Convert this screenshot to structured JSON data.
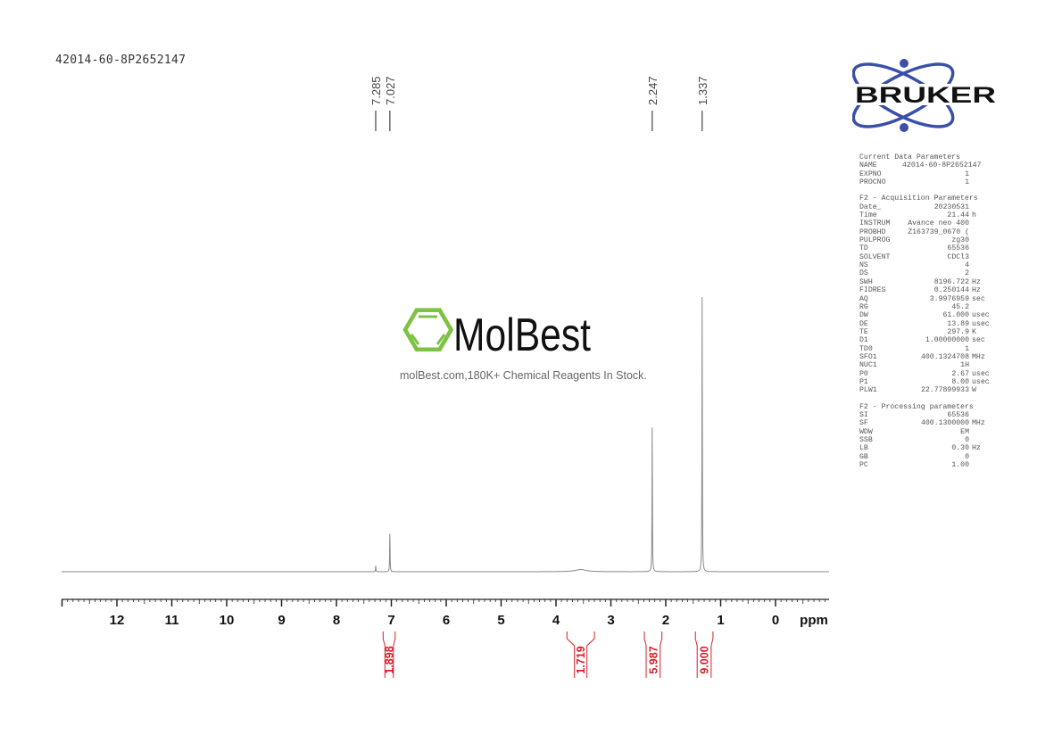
{
  "header": {
    "sample_name": "42014-60-8P2652147"
  },
  "logos": {
    "bruker": "BRUKER",
    "molbest": "MolBest",
    "molbest_tagline": "molBest.com,180K+ Chemical Reagents In Stock."
  },
  "colors": {
    "spectrum": "#888888",
    "integral": "#d4202a",
    "bruker_blue": "#3a4fa8",
    "molbest_green": "#7dc242"
  },
  "parameters": {
    "current": {
      "title": "Current Data Parameters",
      "rows": [
        [
          "NAME",
          "42014-60-8P2652147",
          ""
        ],
        [
          "EXPNO",
          "1",
          ""
        ],
        [
          "PROCNO",
          "1",
          ""
        ]
      ]
    },
    "acquisition": {
      "title": "F2 - Acquisition Parameters",
      "rows": [
        [
          "Date_",
          "20230531",
          ""
        ],
        [
          "Time",
          "21.44",
          "h"
        ],
        [
          "INSTRUM",
          "Avance neo 400",
          ""
        ],
        [
          "PROBHD",
          "Z163739_0670 (",
          ""
        ],
        [
          "PULPROG",
          "zg30",
          ""
        ],
        [
          "TD",
          "65536",
          ""
        ],
        [
          "SOLVENT",
          "CDCl3",
          ""
        ],
        [
          "NS",
          "4",
          ""
        ],
        [
          "DS",
          "2",
          ""
        ],
        [
          "SWH",
          "8196.722",
          "Hz"
        ],
        [
          "FIDRES",
          "0.250144",
          "Hz"
        ],
        [
          "AQ",
          "3.9976959",
          "sec"
        ],
        [
          "RG",
          "45.2",
          ""
        ],
        [
          "DW",
          "61.000",
          "usec"
        ],
        [
          "DE",
          "13.89",
          "usec"
        ],
        [
          "TE",
          "297.9",
          "K"
        ],
        [
          "D1",
          "1.00000000",
          "sec"
        ],
        [
          "TD0",
          "1",
          ""
        ],
        [
          "SFO1",
          "400.1324708",
          "MHz"
        ],
        [
          "NUC1",
          "1H",
          ""
        ],
        [
          "P0",
          "2.67",
          "usec"
        ],
        [
          "P1",
          "8.00",
          "usec"
        ],
        [
          "PLW1",
          "22.77899933",
          "W"
        ]
      ]
    },
    "processing": {
      "title": "F2 - Processing parameters",
      "rows": [
        [
          "SI",
          "65536",
          ""
        ],
        [
          "SF",
          "400.1300000",
          "MHz"
        ],
        [
          "WDW",
          "EM",
          ""
        ],
        [
          "SSB",
          "0",
          ""
        ],
        [
          "LB",
          "0.30",
          "Hz"
        ],
        [
          "GB",
          "0",
          ""
        ],
        [
          "PC",
          "1.00",
          ""
        ]
      ]
    }
  },
  "chart_data": {
    "type": "line",
    "xlabel": "ppm",
    "xlim": [
      13.0,
      -1.0
    ],
    "x_reversed": true,
    "x_ticks": [
      "12",
      "11",
      "10",
      "9",
      "8",
      "7",
      "6",
      "5",
      "4",
      "3",
      "2",
      "1",
      "0"
    ],
    "peak_labels": [
      "7.285",
      "7.027",
      "2.247",
      "1.337"
    ],
    "peaks": [
      {
        "ppm": 7.285,
        "relative_intensity": 0.022
      },
      {
        "ppm": 7.027,
        "relative_intensity": 0.155
      },
      {
        "ppm": 3.55,
        "relative_intensity": 0.008,
        "broad": true
      },
      {
        "ppm": 2.247,
        "relative_intensity": 0.55
      },
      {
        "ppm": 1.337,
        "relative_intensity": 1.0
      }
    ],
    "integrals": [
      {
        "from": 7.15,
        "to": 6.93,
        "value": "1.898"
      },
      {
        "from": 3.8,
        "to": 3.3,
        "value": "1.719"
      },
      {
        "from": 2.39,
        "to": 2.07,
        "value": "5.987"
      },
      {
        "from": 1.46,
        "to": 1.14,
        "value": "9.000"
      }
    ]
  }
}
